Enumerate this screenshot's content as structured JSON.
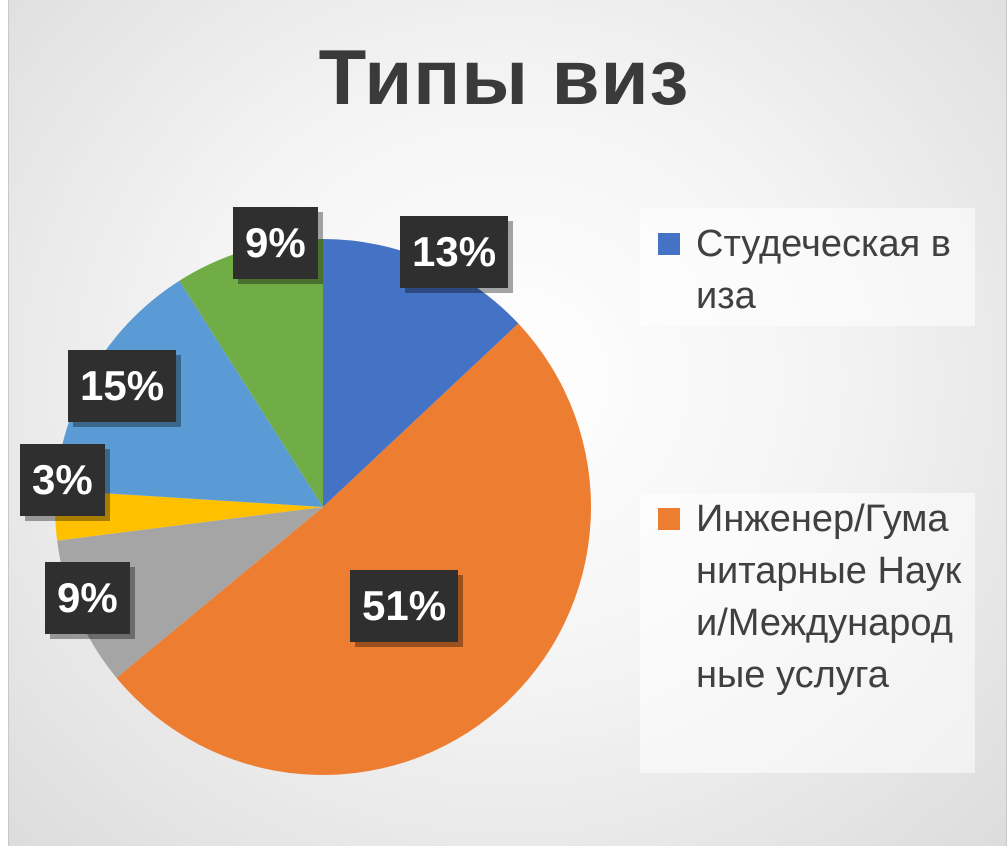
{
  "chart_data": {
    "type": "pie",
    "title": "Типы виз",
    "slices": [
      {
        "label": "Студеческая виза",
        "value": 13,
        "display": "13%",
        "color": "#4472C4"
      },
      {
        "label": "Инженер/Гуманитарные Науки/Международные услуга",
        "value": 51,
        "display": "51%",
        "color": "#ED7D31"
      },
      {
        "label": "",
        "value": 9,
        "display": "9%",
        "color": "#A5A5A5"
      },
      {
        "label": "",
        "value": 3,
        "display": "3%",
        "color": "#FFC000"
      },
      {
        "label": "",
        "value": 15,
        "display": "15%",
        "color": "#5B9BD5"
      },
      {
        "label": "",
        "value": 9,
        "display": "9%",
        "color": "#70AD47"
      }
    ],
    "legend_position": "right",
    "start_angle_deg": 0,
    "direction": "clockwise"
  },
  "legend": {
    "items": [
      {
        "label": "Студеческая виза",
        "color": "#4472C4"
      },
      {
        "label": "Инженер/Гуманитарные Науки/Международные услуга",
        "color": "#ED7D31"
      }
    ]
  }
}
